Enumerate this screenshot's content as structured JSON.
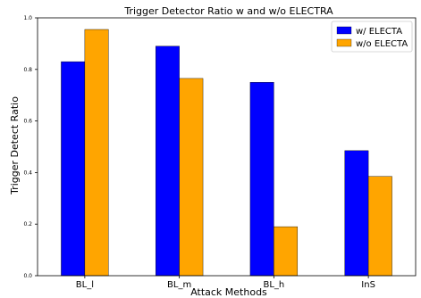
{
  "chart_data": {
    "type": "bar",
    "title": "Trigger Detector Ratio w and w/o ELECTRA",
    "xlabel": "Attack Methods",
    "ylabel": "Trigger Detect Ratio",
    "categories": [
      "BL_l",
      "BL_m",
      "BL_h",
      "InS"
    ],
    "ylim": [
      0,
      1.0
    ],
    "yticks": [
      "0.0",
      "0.2",
      "0.4",
      "0.6",
      "0.8",
      "1.0"
    ],
    "series": [
      {
        "name": "w/ ELECTA",
        "color": "#0000ff",
        "values": [
          0.83,
          0.89,
          0.75,
          0.485
        ]
      },
      {
        "name": "w/o ELECTA",
        "color": "#ffa500",
        "values": [
          0.955,
          0.765,
          0.19,
          0.385
        ]
      }
    ],
    "legend": "top-right",
    "grid": false
  }
}
